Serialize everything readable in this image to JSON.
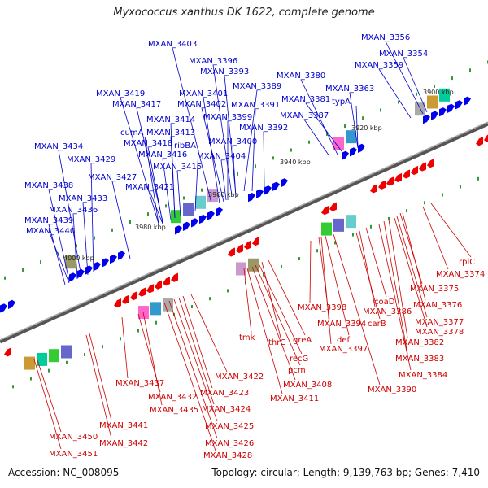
{
  "title": "Myxococcus xanthus DK 1622, complete genome",
  "accession": "Accession: NC_008095",
  "info": "Topology: circular; Length: 9,139,763 bp; Genes: 7,410",
  "kbp_labels": [
    "3900 kbp",
    "3920 kbp",
    "3940 kbp",
    "3960 kbp",
    "3980 kbp",
    "4000 kbp"
  ],
  "forward_labels": [
    "MXAN_3403",
    "MXAN_3396",
    "MXAN_3393",
    "MXAN_3389",
    "MXAN_3401",
    "MXAN_3402",
    "MXAN_3391",
    "MXAN_3399",
    "MXAN_3392",
    "MXAN_3400",
    "MXAN_3404",
    "MXAN_3419",
    "MXAN_3417",
    "MXAN_3414",
    "cumA",
    "MXAN_3413",
    "MXAN_3418",
    "ribBA",
    "MXAN_3416",
    "MXAN_3415",
    "MXAN_3421",
    "MXAN_3434",
    "MXAN_3429",
    "MXAN_3427",
    "MXAN_3438",
    "MXAN_3433",
    "MXAN_3436",
    "MXAN_3439",
    "MXAN_3440",
    "MXAN_3380",
    "MXAN_3381",
    "MXAN_3387",
    "MXAN_3363",
    "typA",
    "MXAN_3356",
    "MXAN_3354",
    "MXAN_3359"
  ],
  "reverse_labels": [
    "rplC",
    "MXAN_3374",
    "MXAN_3375",
    "MXAN_3376",
    "MXAN_3377",
    "MXAN_3378",
    "MXAN_3382",
    "MXAN_3383",
    "MXAN_3384",
    "coaD",
    "MXAN_3386",
    "carB",
    "MXAN_3398",
    "MXAN_3394",
    "def",
    "MXAN_3397",
    "MXAN_3390",
    "greA",
    "thrC",
    "tmk",
    "recG",
    "pcm",
    "MXAN_3408",
    "MXAN_3411",
    "MXAN_3422",
    "MXAN_3423",
    "MXAN_3424",
    "MXAN_3425",
    "MXAN_3426",
    "MXAN_3428",
    "MXAN_3437",
    "MXAN_3432",
    "MXAN_3435",
    "MXAN_3441",
    "MXAN_3442",
    "MXAN_3450",
    "MXAN_3451"
  ]
}
